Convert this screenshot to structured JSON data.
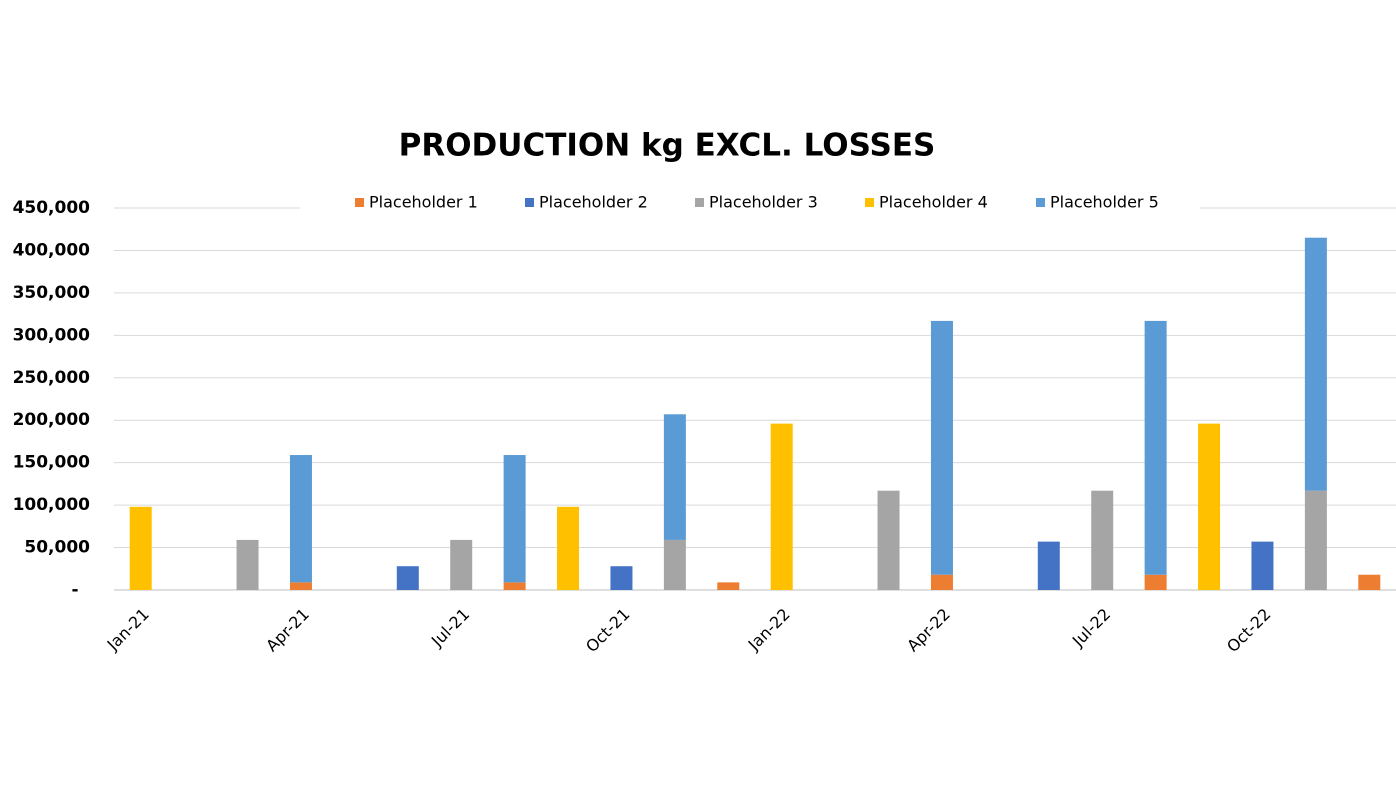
{
  "chart_data": {
    "type": "stacked-bar",
    "title": "PRODUCTION kg EXCL. LOSSES",
    "categories": [
      "Jan-21",
      null,
      null,
      "Apr-21",
      null,
      null,
      "Jul-21",
      null,
      null,
      "Oct-21",
      null,
      null,
      "Jan-22",
      null,
      null,
      "Apr-22",
      null,
      null,
      "Jul-22",
      null,
      null,
      "Oct-22",
      null,
      null
    ],
    "series": [
      {
        "name": "Placeholder 1",
        "color": "#ED7D31",
        "values": [
          0,
          0,
          0,
          9000,
          0,
          0,
          0,
          9000,
          0,
          0,
          0,
          9000,
          0,
          0,
          0,
          18000,
          0,
          0,
          0,
          18000,
          0,
          0,
          0,
          18000
        ]
      },
      {
        "name": "Placeholder 2",
        "color": "#4472C4",
        "values": [
          0,
          0,
          0,
          0,
          0,
          28000,
          0,
          0,
          0,
          28000,
          0,
          0,
          0,
          0,
          0,
          0,
          0,
          57000,
          0,
          0,
          0,
          57000,
          0,
          0
        ]
      },
      {
        "name": "Placeholder 3",
        "color": "#A5A5A5",
        "values": [
          0,
          0,
          59000,
          0,
          0,
          0,
          59000,
          0,
          0,
          0,
          59000,
          0,
          0,
          0,
          117000,
          0,
          0,
          0,
          117000,
          0,
          0,
          0,
          117000,
          0
        ]
      },
      {
        "name": "Placeholder 4",
        "color": "#FFC000",
        "values": [
          98000,
          0,
          0,
          0,
          0,
          0,
          0,
          0,
          98000,
          0,
          0,
          0,
          196000,
          0,
          0,
          0,
          0,
          0,
          0,
          0,
          196000,
          0,
          0,
          0
        ]
      },
      {
        "name": "Placeholder 5",
        "color": "#5B9BD5",
        "values": [
          0,
          0,
          0,
          150000,
          0,
          0,
          0,
          150000,
          0,
          0,
          148000,
          0,
          0,
          0,
          0,
          299000,
          0,
          0,
          0,
          299000,
          0,
          0,
          298000,
          0
        ]
      }
    ],
    "ylim": [
      0,
      450000
    ],
    "yticks": [
      {
        "value": 0,
        "label": "-"
      },
      {
        "value": 50000,
        "label": "50,000"
      },
      {
        "value": 100000,
        "label": "100,000"
      },
      {
        "value": 150000,
        "label": "150,000"
      },
      {
        "value": 200000,
        "label": "200,000"
      },
      {
        "value": 250000,
        "label": "250,000"
      },
      {
        "value": 300000,
        "label": "300,000"
      },
      {
        "value": 350000,
        "label": "350,000"
      },
      {
        "value": 400000,
        "label": "400,000"
      },
      {
        "value": 450000,
        "label": "450,000"
      }
    ],
    "grid": true,
    "legend": "top"
  }
}
